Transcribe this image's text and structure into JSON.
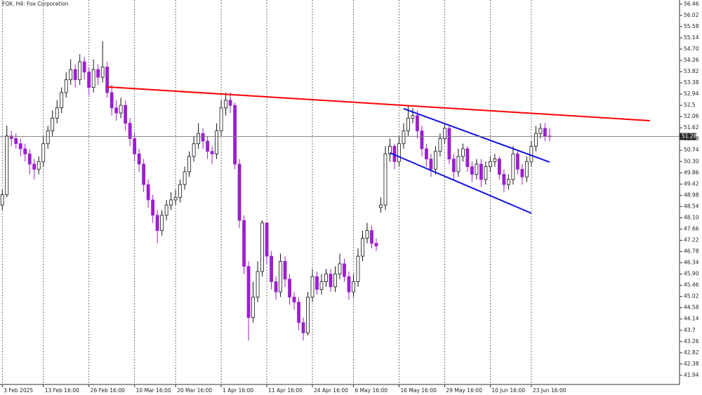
{
  "chart_data": {
    "type": "candlestick",
    "title": "FOX, H4:  Fox Corporation",
    "up_color": "#ffffff",
    "down_color": "#9b1fd0",
    "open": [
      48.6,
      49.0,
      51.3,
      51.2,
      51.0,
      50.8,
      50.6,
      50.2,
      50.0,
      50.3,
      51.0,
      51.5,
      52.0,
      52.4,
      53.0,
      53.5,
      53.9,
      53.5,
      54.2,
      53.8,
      53.2,
      53.9,
      53.6,
      54.0,
      53.0,
      52.4,
      52.2,
      52.5,
      51.8,
      51.2,
      50.6,
      50.2,
      49.4,
      48.8,
      48.2,
      47.6,
      48.2,
      48.6,
      48.8,
      48.9,
      49.4,
      49.9,
      50.5,
      51.0,
      51.4,
      51.1,
      50.7,
      50.6,
      51.5,
      52.4,
      52.7,
      52.5,
      50.2,
      48.0,
      46.2,
      44.2,
      45.0,
      46.0,
      47.9,
      46.6,
      45.6,
      45.2,
      46.4,
      45.7,
      45.0,
      44.8,
      44.0,
      43.6,
      45.0,
      45.8,
      45.3,
      45.6,
      45.9,
      45.4,
      45.9,
      46.3,
      45.8,
      45.2,
      45.6,
      46.6,
      47.3,
      47.6,
      47.1,
      48.5,
      48.6,
      50.6,
      50.9,
      50.3,
      51.0,
      51.5,
      52.0,
      52.1,
      51.5,
      50.8,
      50.4,
      50.0,
      50.7,
      51.2,
      51.6,
      50.4,
      49.9,
      50.5,
      50.8,
      50.1,
      49.8,
      50.2,
      49.6,
      50.1,
      50.3,
      50.4,
      49.8,
      49.4,
      49.6,
      50.6,
      50.0,
      49.7,
      50.3,
      50.9,
      51.4,
      51.6,
      51.3
    ],
    "high": [
      49.2,
      51.7,
      51.5,
      51.4,
      51.2,
      51.0,
      50.8,
      50.4,
      50.5,
      51.3,
      51.7,
      52.3,
      52.7,
      53.2,
      53.8,
      54.3,
      54.1,
      54.5,
      54.4,
      54.0,
      54.3,
      54.1,
      55.0,
      54.2,
      53.3,
      52.7,
      52.8,
      52.7,
      52.0,
      51.4,
      50.8,
      50.4,
      49.6,
      49.0,
      48.4,
      48.4,
      48.8,
      49.1,
      49.2,
      49.6,
      50.1,
      50.7,
      51.3,
      51.8,
      51.6,
      51.3,
      50.9,
      51.8,
      52.7,
      53.0,
      53.0,
      52.6,
      50.4,
      48.2,
      46.4,
      45.6,
      46.4,
      48.0,
      47.9,
      46.8,
      45.8,
      46.7,
      46.6,
      45.9,
      45.2,
      45.0,
      44.2,
      45.2,
      46.1,
      46.0,
      45.9,
      46.1,
      46.1,
      46.2,
      46.7,
      46.5,
      46.0,
      45.9,
      46.9,
      47.6,
      47.9,
      47.8,
      47.3,
      48.9,
      50.9,
      51.2,
      51.0,
      51.3,
      51.8,
      52.5,
      52.4,
      52.3,
      51.7,
      51.0,
      50.6,
      50.9,
      51.4,
      51.8,
      51.7,
      50.6,
      50.8,
      51.0,
      50.9,
      50.3,
      50.4,
      50.4,
      50.3,
      50.5,
      50.6,
      50.5,
      50.0,
      49.8,
      50.9,
      50.7,
      50.2,
      50.5,
      51.1,
      51.7,
      51.8,
      51.8,
      51.6
    ],
    "low": [
      48.4,
      48.9,
      50.9,
      50.8,
      50.5,
      50.3,
      49.8,
      49.6,
      49.8,
      50.1,
      50.8,
      51.3,
      51.8,
      52.2,
      52.8,
      53.3,
      53.2,
      53.3,
      53.5,
      52.9,
      53.0,
      53.3,
      53.4,
      52.8,
      52.1,
      51.9,
      52.0,
      51.5,
      50.9,
      50.3,
      49.9,
      49.1,
      48.5,
      47.9,
      47.1,
      47.4,
      48.0,
      48.4,
      48.6,
      48.7,
      49.2,
      49.7,
      50.3,
      50.8,
      50.8,
      50.4,
      50.2,
      50.4,
      51.3,
      52.1,
      52.2,
      50.0,
      47.7,
      45.9,
      43.3,
      44.0,
      44.8,
      45.8,
      46.3,
      45.3,
      44.9,
      45.0,
      45.4,
      44.7,
      44.5,
      43.7,
      43.3,
      43.5,
      44.8,
      45.1,
      45.1,
      45.4,
      45.2,
      45.2,
      45.7,
      45.6,
      44.9,
      45.0,
      45.4,
      46.4,
      47.1,
      46.9,
      46.8,
      48.3,
      48.4,
      50.3,
      50.0,
      50.1,
      50.8,
      51.3,
      51.8,
      51.2,
      50.5,
      50.1,
      49.7,
      49.8,
      50.5,
      51.0,
      50.2,
      49.6,
      49.7,
      50.3,
      49.9,
      49.5,
      49.6,
      49.3,
      49.4,
      49.9,
      50.1,
      49.6,
      49.1,
      49.2,
      49.4,
      49.8,
      49.4,
      49.5,
      50.1,
      50.7,
      51.2,
      51.1,
      51.1
    ],
    "close": [
      49.0,
      51.3,
      51.2,
      51.0,
      50.8,
      50.6,
      50.2,
      50.0,
      50.3,
      51.0,
      51.5,
      52.0,
      52.4,
      53.0,
      53.5,
      53.9,
      53.5,
      54.2,
      53.8,
      53.2,
      53.9,
      53.6,
      54.0,
      53.0,
      52.4,
      52.2,
      52.5,
      51.8,
      51.2,
      50.6,
      50.2,
      49.4,
      48.8,
      48.2,
      47.6,
      48.2,
      48.6,
      48.8,
      48.9,
      49.4,
      49.9,
      50.5,
      51.0,
      51.4,
      51.1,
      50.7,
      50.6,
      51.5,
      52.4,
      52.7,
      52.5,
      50.2,
      48.0,
      46.2,
      44.2,
      45.0,
      46.0,
      47.9,
      46.6,
      45.6,
      45.2,
      46.4,
      45.7,
      45.0,
      44.8,
      44.0,
      43.6,
      45.0,
      45.8,
      45.3,
      45.6,
      45.9,
      45.4,
      45.9,
      46.3,
      45.8,
      45.2,
      45.6,
      46.6,
      47.3,
      47.6,
      47.1,
      47.0,
      48.6,
      50.6,
      50.9,
      50.3,
      51.0,
      51.5,
      52.0,
      52.1,
      51.5,
      50.8,
      50.4,
      50.0,
      50.7,
      51.2,
      51.6,
      50.4,
      49.9,
      50.5,
      50.8,
      50.1,
      49.8,
      50.2,
      49.6,
      50.1,
      50.3,
      50.4,
      49.8,
      49.4,
      49.6,
      50.6,
      50.0,
      49.7,
      50.3,
      50.9,
      51.4,
      51.6,
      51.3,
      51.28
    ],
    "last_price": 51.28,
    "xlim": [
      -0.5,
      148.5
    ],
    "xticks": [
      {
        "value": 0,
        "label": "3 Feb 2025"
      },
      {
        "value": 9,
        "label": "13 Feb 16:00"
      },
      {
        "value": 19,
        "label": "26 Feb 16:00"
      },
      {
        "value": 29,
        "label": "10 Mar 16:00"
      },
      {
        "value": 38,
        "label": "20 Mar 16:00"
      },
      {
        "value": 48,
        "label": "1 Apr 16:00"
      },
      {
        "value": 58,
        "label": "11 Apr 16:00"
      },
      {
        "value": 68,
        "label": "24 Apr 16:00"
      },
      {
        "value": 77,
        "label": "6 May 16:00"
      },
      {
        "value": 87,
        "label": "16 May 16:00"
      },
      {
        "value": 97,
        "label": "29 May 16:00"
      },
      {
        "value": 107,
        "label": "10 Jun 16:00"
      },
      {
        "value": 116,
        "label": "23 Jun 16:00"
      }
    ],
    "ylim": [
      41.58,
      56.62
    ],
    "yticks": [
      56.46,
      56.02,
      55.58,
      55.14,
      {
        "value": 54.7,
        "label": "54.70"
      },
      54.26,
      53.82,
      53.38,
      52.94,
      52.5,
      52.06,
      51.62,
      51.18,
      50.74,
      {
        "value": 50.3,
        "label": "50.30"
      },
      49.86,
      49.42,
      48.98,
      48.54,
      {
        "value": 48.1,
        "label": "48.10"
      },
      47.66,
      47.22,
      46.78,
      46.34,
      {
        "value": 45.9,
        "label": "45.90"
      },
      45.46,
      45.02,
      44.58,
      44.14,
      43.7,
      43.26,
      42.82,
      42.38,
      41.94
    ],
    "trendlines": [
      {
        "color": "#ff0000",
        "x": [
          23,
          142
        ],
        "y": [
          53.22,
          51.9
        ]
      },
      {
        "color": "#1010e0",
        "x": [
          88,
          120
        ],
        "y": [
          52.37,
          50.28
        ]
      },
      {
        "color": "#1010e0",
        "x": [
          85,
          116
        ],
        "y": [
          50.64,
          48.28
        ]
      }
    ]
  }
}
